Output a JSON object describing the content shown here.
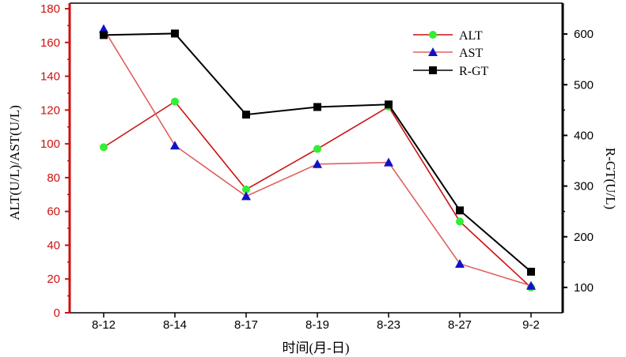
{
  "chart_data": {
    "type": "line",
    "categories": [
      "8-12",
      "8-14",
      "8-17",
      "8-19",
      "8-23",
      "8-27",
      "9-2"
    ],
    "xlabel": "时间(月-日)",
    "ylabel_left": "ALT(U/L)/AST(U/L)",
    "ylabel_right": "R-GT(U/L)",
    "ylim_left": [
      0,
      180
    ],
    "yticks_left": [
      0,
      20,
      40,
      60,
      80,
      100,
      120,
      140,
      160,
      180
    ],
    "ylim_right": [
      50,
      650
    ],
    "yticks_right": [
      100,
      200,
      300,
      400,
      500,
      600
    ],
    "grid": false,
    "legend_position": "top-right",
    "series": [
      {
        "name": "ALT",
        "axis": "left",
        "values": [
          98,
          125,
          73,
          97,
          122,
          54,
          15
        ],
        "color": "#cc1111",
        "marker": "circle",
        "marker_color": "#33ee33"
      },
      {
        "name": "AST",
        "axis": "left",
        "values": [
          168,
          99,
          69,
          88,
          89,
          29,
          16
        ],
        "color": "#e06060",
        "marker": "triangle",
        "marker_color": "#1111cc"
      },
      {
        "name": "R-GT",
        "axis": "right",
        "values": [
          598,
          601,
          441,
          456,
          461,
          252,
          131
        ],
        "color": "#000000",
        "marker": "square",
        "marker_color": "#000000"
      }
    ]
  }
}
